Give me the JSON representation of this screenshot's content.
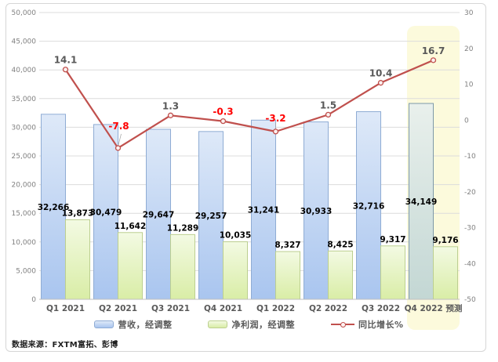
{
  "source_note": "数据来源：FXTM富拓、彭博",
  "chart_data": {
    "type": "bar+line combo",
    "title": "",
    "categories": [
      "Q1 2021",
      "Q2 2021",
      "Q3 2021",
      "Q4 2021",
      "Q1 2022",
      "Q2 2022",
      "Q3 2022",
      "Q4 2022 预测"
    ],
    "series": [
      {
        "name": "营收，经调整",
        "type": "bar",
        "axis": "left",
        "values": [
          32266,
          30479,
          29647,
          29257,
          31241,
          30933,
          32716,
          34149
        ],
        "labels": [
          "32,266",
          "30,479",
          "29,647",
          "29,257",
          "31,241",
          "30,933",
          "32,716",
          "34,149"
        ]
      },
      {
        "name": "净利润，经调整",
        "type": "bar",
        "axis": "left",
        "values": [
          13873,
          11642,
          11289,
          10035,
          8327,
          8425,
          9317,
          9176
        ],
        "labels": [
          "13,873",
          "11,642",
          "11,289",
          "10,035",
          "8,327",
          "8,425",
          "9,317",
          "9,176"
        ]
      },
      {
        "name": "同比增长%",
        "type": "line",
        "axis": "right",
        "values": [
          14.1,
          -7.8,
          1.3,
          -0.3,
          -3.2,
          1.5,
          10.4,
          16.7
        ],
        "labels": [
          "14.1",
          "-7.8",
          "1.3",
          "-0.3",
          "-3.2",
          "1.5",
          "10.4",
          "16.7"
        ]
      }
    ],
    "left_axis": {
      "min": 0,
      "max": 50000,
      "step": 5000,
      "tick_labels": [
        "50,000",
        "45,000",
        "40,000",
        "35,000",
        "30,000",
        "25,000",
        "20,000",
        "15,000",
        "10,000",
        "5,000",
        "0"
      ]
    },
    "right_axis": {
      "min": -50,
      "max": 30,
      "step": 10,
      "tick_labels": [
        "30",
        "20",
        "10",
        "0",
        "-10",
        "-20",
        "-30",
        "-40",
        "-50"
      ]
    },
    "grid": true,
    "legend_position": "bottom",
    "forecast_index": 7,
    "highlight": {
      "category": "Q4 2022 预测",
      "color": "#FCFADC"
    },
    "legend": {
      "items": [
        {
          "label": "营收，经调整",
          "swatch": "revenue"
        },
        {
          "label": "净利润，经调整",
          "swatch": "profit"
        },
        {
          "label": "同比增长%",
          "swatch": "line"
        }
      ]
    },
    "colors": {
      "revenue_fill_top": "#DEE9F8",
      "revenue_fill_bottom": "#A9C5EF",
      "revenue_border": "#8FACD4",
      "profit_fill_top": "#F3FAE3",
      "profit_fill_bottom": "#D9EDA6",
      "profit_border": "#BCCF90",
      "forecast_fill_top": "#E9F0EC",
      "forecast_fill_bottom": "#C3D7D4",
      "forecast_border": "#7E99A9",
      "line": "#C0504D",
      "marker_fill": "#FBF0EF",
      "positive_label": "#595959",
      "negative_label": "#FF0000",
      "grid": "#DCDCDC",
      "axis": "#BFBFBF",
      "tick_text": "#808080",
      "category_text": "#595959",
      "highlight": "#FCFADC",
      "bar_label": "#000000",
      "frame_border": "#D6D6D6"
    }
  }
}
